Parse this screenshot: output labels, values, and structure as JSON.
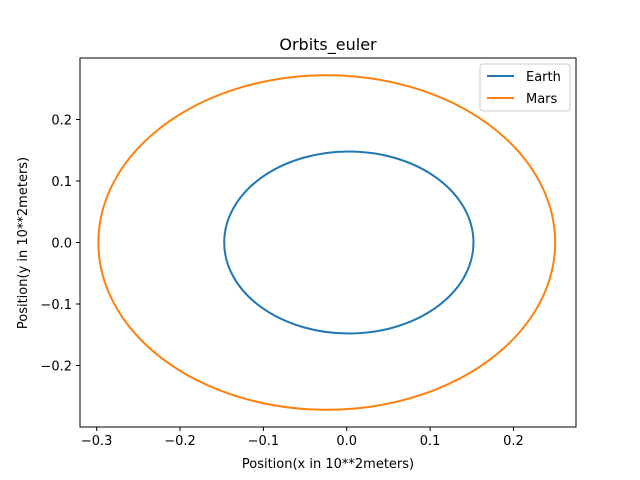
{
  "chart_data": {
    "type": "line",
    "title": "Orbits_euler",
    "xlabel": "Position(x in 10**2meters)",
    "ylabel": "Position(y in 10**2meters)",
    "xlim": [
      -0.32,
      0.275
    ],
    "ylim": [
      -0.3,
      0.3
    ],
    "xticks": [
      -0.3,
      -0.2,
      -0.1,
      0.0,
      0.1,
      0.2
    ],
    "xtick_labels": [
      "−0.3",
      "−0.2",
      "−0.1",
      "0.0",
      "0.1",
      "0.2"
    ],
    "yticks": [
      -0.2,
      -0.1,
      0.0,
      0.1,
      0.2
    ],
    "ytick_labels": [
      "−0.2",
      "−0.1",
      "0.0",
      "0.1",
      "0.2"
    ],
    "grid": false,
    "legend_position": "top-right",
    "series": [
      {
        "name": "Earth",
        "color": "#1f77b4",
        "shape": "ellipse",
        "x_min": -0.147,
        "x_max": 0.152,
        "y_min": -0.148,
        "y_max": 0.148
      },
      {
        "name": "Mars",
        "color": "#ff7f0e",
        "shape": "ellipse",
        "x_min": -0.298,
        "x_max": 0.25,
        "y_min": -0.272,
        "y_max": 0.272
      }
    ]
  }
}
